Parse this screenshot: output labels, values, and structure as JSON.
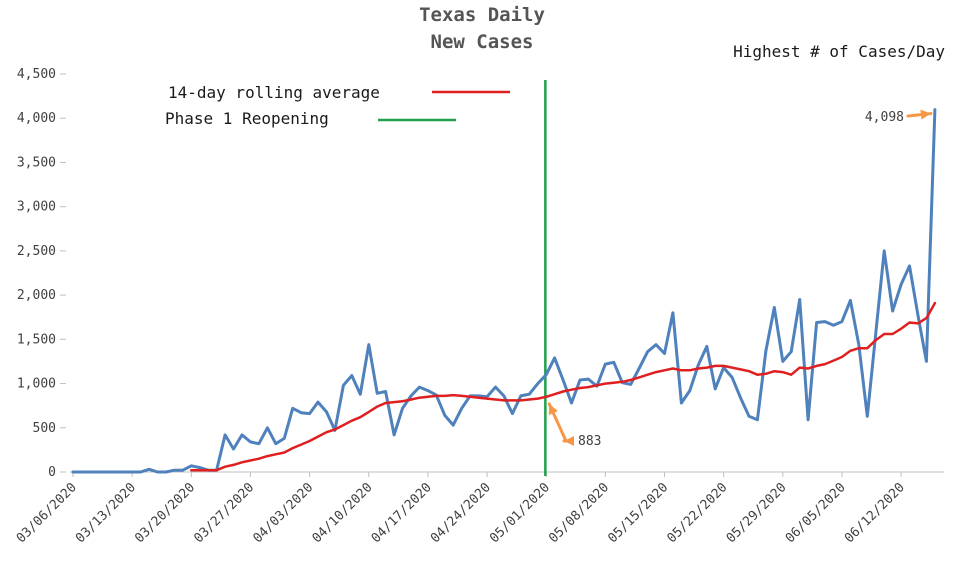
{
  "chart_data": {
    "type": "line",
    "title_lines": [
      "Texas Daily",
      "New Cases"
    ],
    "xlabel": "",
    "ylabel": "",
    "ylim": [
      0,
      4500
    ],
    "y_ticks": [
      0,
      500,
      1000,
      1500,
      2000,
      2500,
      3000,
      3500,
      4000,
      4500
    ],
    "y_tick_labels": [
      "0",
      "500",
      "1,000",
      "1,500",
      "2,000",
      "2,500",
      "3,000",
      "3,500",
      "4,000",
      "4,500"
    ],
    "x_tick_labels": [
      "03/06/2020",
      "03/13/2020",
      "03/20/2020",
      "03/27/2020",
      "04/03/2020",
      "04/10/2020",
      "04/17/2020",
      "04/24/2020",
      "05/01/2020",
      "05/08/2020",
      "05/15/2020",
      "05/22/2020",
      "05/29/2020",
      "06/05/2020",
      "06/12/2020"
    ],
    "x_tick_day_offsets": [
      0,
      7,
      14,
      21,
      28,
      35,
      42,
      49,
      56,
      63,
      70,
      77,
      84,
      91,
      98
    ],
    "grid": {
      "horizontal": false,
      "vertical": false
    },
    "series": [
      {
        "name": "",
        "color": "#4f81bd",
        "values": [
          0,
          0,
          0,
          0,
          0,
          0,
          0,
          0,
          0,
          30,
          0,
          0,
          20,
          20,
          70,
          50,
          20,
          20,
          420,
          260,
          420,
          340,
          320,
          500,
          320,
          380,
          720,
          670,
          660,
          790,
          680,
          470,
          980,
          1090,
          880,
          1440,
          890,
          910,
          420,
          720,
          860,
          960,
          920,
          870,
          640,
          530,
          720,
          860,
          860,
          850,
          960,
          860,
          660,
          860,
          880,
          1000,
          1100,
          1290,
          1040,
          780,
          1040,
          1050,
          970,
          1220,
          1240,
          1010,
          990,
          1170,
          1360,
          1440,
          1340,
          1800,
          780,
          920,
          1210,
          1420,
          940,
          1180,
          1070,
          840,
          630,
          590,
          1370,
          1860,
          1250,
          1360,
          1950,
          590,
          1690,
          1700,
          1660,
          1700,
          1940,
          1440,
          630,
          1560,
          2500,
          1820,
          2120,
          2330,
          1770,
          1250,
          4098
        ]
      },
      {
        "name": "14-day rolling average",
        "color": "#e02020",
        "values": [
          null,
          null,
          null,
          null,
          null,
          null,
          null,
          null,
          null,
          null,
          null,
          null,
          null,
          null,
          20,
          20,
          20,
          20,
          60,
          80,
          110,
          130,
          150,
          180,
          200,
          220,
          270,
          310,
          350,
          400,
          450,
          480,
          530,
          580,
          620,
          680,
          740,
          780,
          790,
          800,
          820,
          840,
          850,
          860,
          860,
          870,
          860,
          850,
          840,
          830,
          820,
          810,
          810,
          810,
          820,
          830,
          850,
          880,
          910,
          930,
          950,
          960,
          980,
          1000,
          1010,
          1020,
          1040,
          1070,
          1100,
          1130,
          1150,
          1170,
          1150,
          1150,
          1170,
          1180,
          1200,
          1200,
          1180,
          1160,
          1140,
          1100,
          1110,
          1140,
          1130,
          1100,
          1180,
          1170,
          1200,
          1220,
          1260,
          1300,
          1370,
          1400,
          1400,
          1490,
          1560,
          1560,
          1620,
          1690,
          1680,
          1740,
          1910
        ]
      }
    ],
    "legend": [
      "14-day rolling average",
      "Phase 1 Reopening"
    ],
    "legend_placement": "top-left inside plot",
    "annotations": [
      {
        "text": "883",
        "x_day_offset": 56,
        "value": 883
      },
      {
        "text": "4,098",
        "x_day_offset": 102,
        "value": 4098
      }
    ],
    "reference_line": {
      "label": "Phase 1 Reopening",
      "x_day_offset": 55.9,
      "color": "#1fa14a"
    },
    "corner_note": "Highest # of Cases/Day",
    "arrow_color": "#f79646"
  }
}
